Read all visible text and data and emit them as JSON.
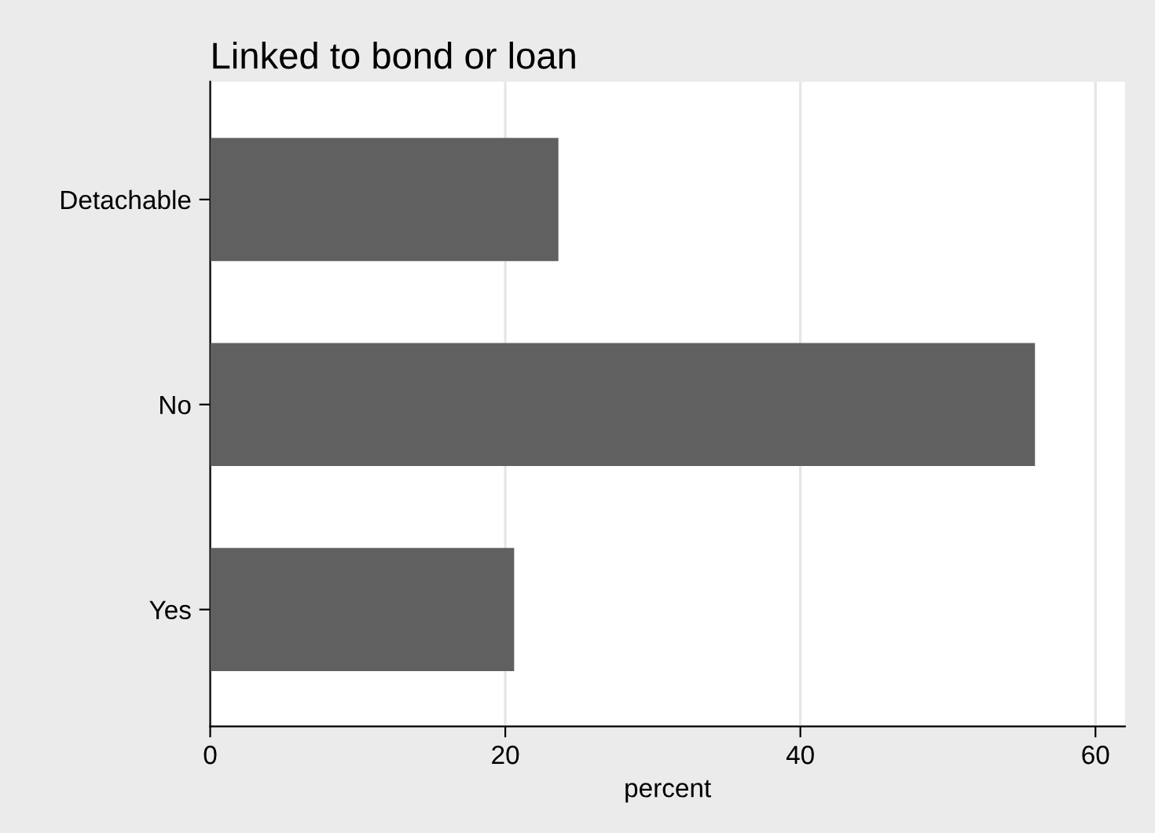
{
  "chart_data": {
    "type": "bar",
    "orientation": "horizontal",
    "title": "Linked to bond or loan",
    "xlabel": "percent",
    "categories": [
      "Detachable",
      "No",
      "Yes"
    ],
    "values": [
      23.6,
      55.9,
      20.6
    ],
    "color": "#606060",
    "xlim": [
      0,
      62
    ],
    "xticks": [
      0,
      20,
      40,
      60
    ],
    "grid": "x",
    "legend": false
  }
}
